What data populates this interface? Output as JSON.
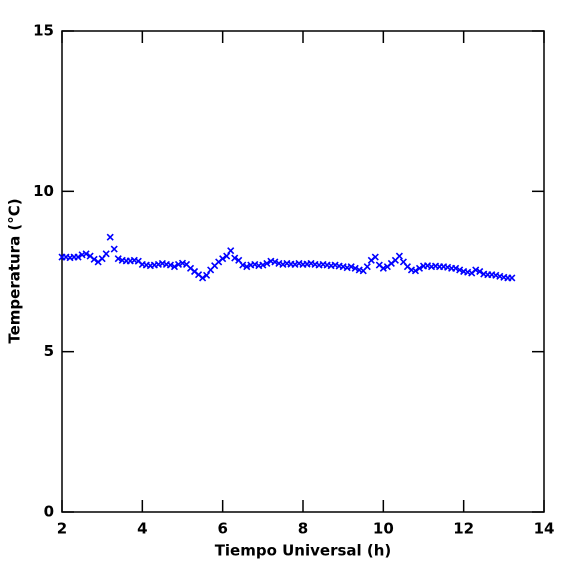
{
  "chart_data": {
    "type": "scatter",
    "x_label": "Tiempo Universal (h)",
    "y_label": "Temperatura (°C)",
    "xlim": [
      2,
      14
    ],
    "xticks": [
      2,
      4,
      6,
      8,
      10,
      12,
      14
    ],
    "ylim": [
      0,
      15
    ],
    "yticks": [
      0,
      5,
      10,
      15
    ],
    "color": "#0000ff",
    "x": [
      2.0,
      2.1,
      2.2,
      2.3,
      2.4,
      2.5,
      2.6,
      2.7,
      2.8,
      2.9,
      3.0,
      3.1,
      3.2,
      3.3,
      3.4,
      3.5,
      3.6,
      3.7,
      3.8,
      3.9,
      4.0,
      4.1,
      4.2,
      4.3,
      4.4,
      4.5,
      4.6,
      4.7,
      4.8,
      4.9,
      5.0,
      5.1,
      5.2,
      5.3,
      5.4,
      5.5,
      5.6,
      5.7,
      5.8,
      5.9,
      6.0,
      6.1,
      6.2,
      6.3,
      6.4,
      6.5,
      6.6,
      6.7,
      6.8,
      6.9,
      7.0,
      7.1,
      7.2,
      7.3,
      7.4,
      7.5,
      7.6,
      7.7,
      7.8,
      7.9,
      8.0,
      8.1,
      8.2,
      8.3,
      8.4,
      8.5,
      8.6,
      8.7,
      8.8,
      8.9,
      9.0,
      9.1,
      9.2,
      9.3,
      9.4,
      9.5,
      9.6,
      9.7,
      9.8,
      9.9,
      10.0,
      10.1,
      10.2,
      10.3,
      10.4,
      10.5,
      10.6,
      10.7,
      10.8,
      10.9,
      11.0,
      11.1,
      11.2,
      11.3,
      11.4,
      11.5,
      11.6,
      11.7,
      11.8,
      11.9,
      12.0,
      12.1,
      12.2,
      12.3,
      12.4,
      12.5,
      12.6,
      12.7,
      12.8,
      12.9,
      13.0,
      13.1,
      13.2
    ],
    "values": [
      7.95,
      7.95,
      7.93,
      7.95,
      7.95,
      8.02,
      8.05,
      7.98,
      7.88,
      7.8,
      7.9,
      8.05,
      8.57,
      8.2,
      7.9,
      7.85,
      7.83,
      7.83,
      7.85,
      7.82,
      7.72,
      7.7,
      7.68,
      7.7,
      7.72,
      7.75,
      7.72,
      7.7,
      7.65,
      7.72,
      7.76,
      7.72,
      7.6,
      7.5,
      7.4,
      7.3,
      7.38,
      7.55,
      7.68,
      7.8,
      7.9,
      7.98,
      8.15,
      7.92,
      7.85,
      7.7,
      7.65,
      7.7,
      7.72,
      7.68,
      7.7,
      7.75,
      7.82,
      7.8,
      7.75,
      7.72,
      7.75,
      7.73,
      7.72,
      7.75,
      7.72,
      7.73,
      7.75,
      7.72,
      7.7,
      7.72,
      7.7,
      7.68,
      7.7,
      7.67,
      7.65,
      7.62,
      7.65,
      7.6,
      7.55,
      7.52,
      7.65,
      7.85,
      7.95,
      7.7,
      7.6,
      7.65,
      7.75,
      7.85,
      7.98,
      7.8,
      7.65,
      7.55,
      7.52,
      7.6,
      7.67,
      7.68,
      7.65,
      7.67,
      7.65,
      7.65,
      7.63,
      7.6,
      7.6,
      7.55,
      7.5,
      7.48,
      7.45,
      7.55,
      7.5,
      7.42,
      7.4,
      7.4,
      7.38,
      7.35,
      7.32,
      7.3,
      7.3
    ]
  }
}
